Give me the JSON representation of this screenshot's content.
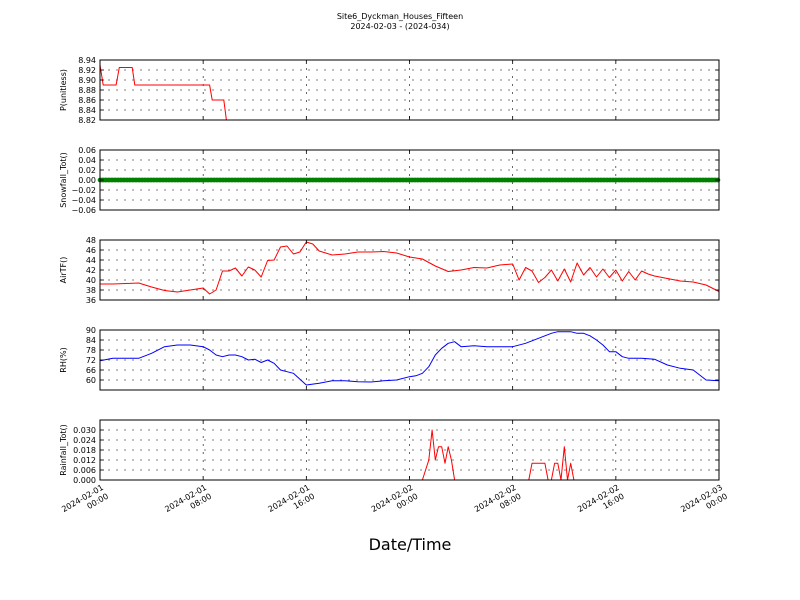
{
  "chart_data": {
    "type": "line",
    "title": "Site6_Dyckman_Houses_Fifteen",
    "subtitle": "2024-02-03 - (2024-034)",
    "xlabel": "Date/Time",
    "x_ticks": [
      {
        "hours": 0,
        "line1": "2024-02-01",
        "line2": "00:00"
      },
      {
        "hours": 8,
        "line1": "2024-02-01",
        "line2": "08:00"
      },
      {
        "hours": 16,
        "line1": "2024-02-01",
        "line2": "16:00"
      },
      {
        "hours": 24,
        "line1": "2024-02-02",
        "line2": "00:00"
      },
      {
        "hours": 32,
        "line1": "2024-02-02",
        "line2": "08:00"
      },
      {
        "hours": 40,
        "line1": "2024-02-02",
        "line2": "16:00"
      },
      {
        "hours": 48,
        "line1": "2024-02-03",
        "line2": "00:00"
      }
    ],
    "xlim": [
      0,
      48
    ],
    "grid": true,
    "panels": [
      {
        "ylabel": "P(unitless)",
        "color": "#ff0000",
        "ylim": [
          8.82,
          8.94
        ],
        "yticks": [
          "8.94",
          "8.92",
          "8.90",
          "8.88",
          "8.86",
          "8.84",
          "8.82"
        ],
        "ytick_values": [
          8.94,
          8.92,
          8.9,
          8.88,
          8.86,
          8.84,
          8.82
        ],
        "x": [
          0,
          0.25,
          0.5,
          1.25,
          1.5,
          2.5,
          2.7,
          4,
          6,
          6.5,
          8,
          8.5,
          8.7,
          9.6,
          9.8,
          10.5,
          11,
          11.3,
          12,
          48
        ],
        "y": [
          8.93,
          8.89,
          8.89,
          8.89,
          8.925,
          8.925,
          8.89,
          8.89,
          8.89,
          8.89,
          8.89,
          8.89,
          8.86,
          8.86,
          8.82,
          8.82,
          8.82,
          8.82,
          8.82,
          8.82
        ]
      },
      {
        "ylabel": "Snowfall_Tot()",
        "color": "#008000",
        "style": "markers",
        "ylim": [
          -0.06,
          0.06
        ],
        "yticks": [
          "0.06",
          "0.04",
          "0.02",
          "0.00",
          "−0.02",
          "−0.04",
          "−0.06"
        ],
        "ytick_values": [
          0.06,
          0.04,
          0.02,
          0.0,
          -0.02,
          -0.04,
          -0.06
        ],
        "x": [
          0,
          48
        ],
        "y": [
          0,
          0
        ]
      },
      {
        "ylabel": "AirTF()",
        "color": "#ff0000",
        "ylim": [
          36,
          48
        ],
        "yticks": [
          "48",
          "46",
          "44",
          "42",
          "40",
          "38",
          "36"
        ],
        "ytick_values": [
          48,
          46,
          44,
          42,
          40,
          38,
          36
        ],
        "x": [
          0,
          1,
          2,
          3,
          4,
          5,
          6,
          7,
          8,
          8.5,
          9,
          9.5,
          10,
          10.5,
          11,
          11.5,
          12,
          12.5,
          13,
          13.5,
          14,
          14.5,
          15,
          15.5,
          16,
          16.5,
          17,
          18,
          19,
          20,
          21,
          22,
          23,
          24,
          25,
          26,
          27,
          28,
          29,
          30,
          31,
          32,
          32.5,
          33,
          33.5,
          34,
          34.5,
          35,
          35.5,
          36,
          36.5,
          37,
          37.5,
          38,
          38.5,
          39,
          39.5,
          40,
          40.5,
          41,
          41.5,
          42,
          42.5,
          43,
          44,
          45,
          46,
          47,
          48
        ],
        "y": [
          39.2,
          39.2,
          39.3,
          39.4,
          38.6,
          37.9,
          37.6,
          38.0,
          38.4,
          37.2,
          38.0,
          41.8,
          41.8,
          42.4,
          40.8,
          42.6,
          42.0,
          40.6,
          43.9,
          44.0,
          46.6,
          46.8,
          45.2,
          45.6,
          47.6,
          47.2,
          45.8,
          45.0,
          45.2,
          45.6,
          45.6,
          45.7,
          45.4,
          44.6,
          44.2,
          42.8,
          41.7,
          42.0,
          42.5,
          42.4,
          43.0,
          43.2,
          40.0,
          42.5,
          41.8,
          39.5,
          40.5,
          42.0,
          39.8,
          42.2,
          39.6,
          43.4,
          41.0,
          42.5,
          40.6,
          42.2,
          40.5,
          42.0,
          39.8,
          41.7,
          40.0,
          41.8,
          41.2,
          40.8,
          40.3,
          39.8,
          39.6,
          39.0,
          37.7
        ]
      },
      {
        "ylabel": "RH(%)",
        "color": "#0000ff",
        "ylim": [
          54,
          90
        ],
        "yticks": [
          "90",
          "84",
          "78",
          "72",
          "66",
          "60"
        ],
        "ytick_values": [
          90,
          84,
          78,
          72,
          66,
          60
        ],
        "x": [
          0,
          1,
          2,
          3,
          4,
          5,
          6,
          7,
          8,
          8.5,
          9,
          9.5,
          10,
          10.5,
          11,
          11.5,
          12,
          12.5,
          13,
          13.5,
          14,
          14.5,
          15,
          16,
          17,
          18,
          19,
          20,
          21,
          22,
          23,
          24,
          24.5,
          25,
          25.5,
          26,
          26.5,
          27,
          27.5,
          28,
          29,
          30,
          31,
          32,
          33,
          34,
          35,
          35.5,
          36,
          36.5,
          37,
          37.5,
          38,
          38.5,
          39,
          39.5,
          40,
          40.5,
          41,
          42,
          43,
          44,
          45,
          46,
          47,
          48
        ],
        "y": [
          71.5,
          73,
          73,
          73,
          76,
          80,
          81,
          81,
          80,
          78,
          75,
          74,
          75,
          75,
          74,
          72,
          72.5,
          70.5,
          72,
          70,
          66,
          65,
          64,
          57,
          58,
          59.5,
          59.5,
          59,
          58.8,
          59.5,
          60,
          62,
          62.5,
          64,
          68,
          75,
          79,
          82,
          83,
          80,
          80.5,
          80,
          80,
          80,
          82,
          85,
          88,
          89,
          89,
          89,
          88,
          88,
          86.5,
          84,
          81,
          77,
          77,
          74,
          73,
          73,
          72.5,
          69,
          67,
          66,
          60,
          59.5
        ]
      },
      {
        "ylabel": "Rainfall_Tot()",
        "color": "#ff0000",
        "ylim": [
          0,
          0.036
        ],
        "yticks": [
          "0.030",
          "0.024",
          "0.018",
          "0.012",
          "0.006",
          "0.000"
        ],
        "ytick_values": [
          0.03,
          0.024,
          0.018,
          0.012,
          0.006,
          0.0
        ],
        "x": [
          0,
          25,
          25.5,
          25.75,
          26,
          26.25,
          26.5,
          26.75,
          27,
          27.25,
          27.5,
          33.25,
          33.5,
          34.5,
          34.75,
          35,
          35.25,
          35.5,
          35.75,
          36,
          36.25,
          36.5,
          36.75,
          48
        ],
        "y": [
          0,
          0,
          0.012,
          0.03,
          0.012,
          0.02,
          0.02,
          0.01,
          0.02,
          0.012,
          0,
          0,
          0.01,
          0.01,
          0,
          0,
          0.01,
          0.01,
          0,
          0.02,
          0,
          0.01,
          0,
          0
        ]
      }
    ]
  }
}
